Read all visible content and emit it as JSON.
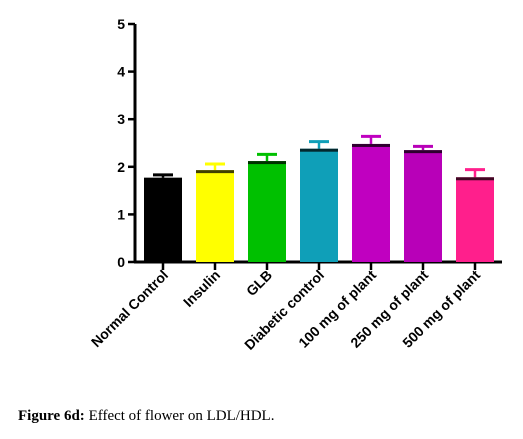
{
  "caption": {
    "label": "Figure 6d:",
    "text": "Effect of flower on LDL/HDL."
  },
  "chart_data": {
    "type": "bar",
    "title": "",
    "xlabel": "",
    "ylabel": "",
    "ylim": [
      0,
      5
    ],
    "yticks": [
      0,
      1,
      2,
      3,
      4,
      5
    ],
    "grid": false,
    "categories": [
      "Normal Control",
      "Insulin",
      "GLB",
      "Diabetic control",
      "100 mg of plant",
      "250 mg of plant",
      "500 mg of plant"
    ],
    "values": [
      1.77,
      1.93,
      2.12,
      2.38,
      2.48,
      2.35,
      1.78
    ],
    "errors": [
      0.06,
      0.13,
      0.14,
      0.15,
      0.16,
      0.08,
      0.16
    ],
    "colors": [
      "#000000",
      "#ffff00",
      "#00c000",
      "#0f9fb8",
      "#c000c0",
      "#b800b8",
      "#ff1f8c"
    ]
  }
}
